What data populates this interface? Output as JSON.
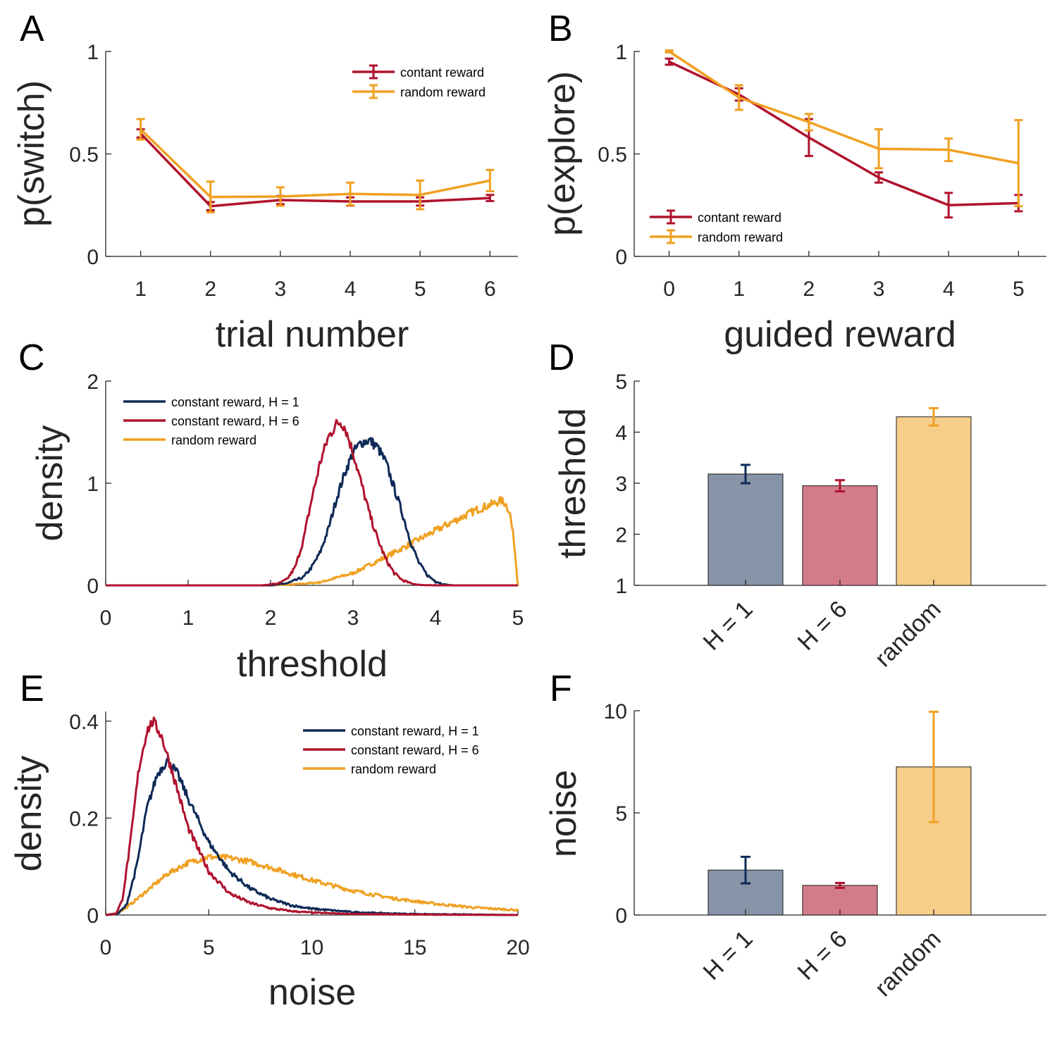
{
  "colors": {
    "navy": "#0f2a57",
    "crimson": "#b0122d",
    "orange": "#f0a021",
    "axis": "#262626"
  },
  "chart_data": [
    {
      "panel": "A",
      "type": "line",
      "xlabel": "trial number",
      "ylabel": "p(switch)",
      "xlim": [
        0.5,
        6.4
      ],
      "ylim": [
        0,
        1
      ],
      "x": [
        1,
        2,
        3,
        4,
        5,
        6
      ],
      "xticks": [
        "1",
        "2",
        "3",
        "4",
        "5",
        "6"
      ],
      "yticks": [
        "0",
        "0.5",
        "1"
      ],
      "legend_position": "top-right",
      "series": [
        {
          "name": "contant reward",
          "color": "#b0122d",
          "values": [
            0.6,
            0.245,
            0.275,
            0.268,
            0.268,
            0.285
          ],
          "err": [
            0.02,
            0.02,
            0.02,
            0.02,
            0.02,
            0.015
          ]
        },
        {
          "name": "random reward",
          "color": "#f0a021",
          "values": [
            0.62,
            0.29,
            0.292,
            0.305,
            0.3,
            0.37
          ],
          "err": [
            0.05,
            0.075,
            0.045,
            0.055,
            0.07,
            0.052
          ]
        }
      ]
    },
    {
      "panel": "B",
      "type": "line",
      "xlabel": "guided reward",
      "ylabel": "p(explore)",
      "xlim": [
        -0.5,
        5.4
      ],
      "ylim": [
        0,
        1
      ],
      "x": [
        0,
        1,
        2,
        3,
        4,
        5
      ],
      "xticks": [
        "0",
        "1",
        "2",
        "3",
        "4",
        "5"
      ],
      "yticks": [
        "0",
        "0.5",
        "1"
      ],
      "legend_position": "bottom-left",
      "series": [
        {
          "name": "contant reward",
          "color": "#b0122d",
          "values": [
            0.95,
            0.79,
            0.58,
            0.385,
            0.25,
            0.26
          ],
          "err": [
            0.015,
            0.03,
            0.09,
            0.025,
            0.06,
            0.04
          ]
        },
        {
          "name": "random reward",
          "color": "#f0a021",
          "values": [
            1.0,
            0.775,
            0.655,
            0.525,
            0.52,
            0.455
          ],
          "err": [
            0.005,
            0.06,
            0.04,
            0.095,
            0.055,
            0.21
          ]
        }
      ]
    },
    {
      "panel": "C",
      "type": "line",
      "xlabel": "threshold",
      "ylabel": "density",
      "xlim": [
        0,
        5
      ],
      "ylim": [
        0,
        2
      ],
      "xticks": [
        "0",
        "1",
        "2",
        "3",
        "4",
        "5"
      ],
      "yticks": [
        "0",
        "1",
        "2"
      ],
      "legend_position": "top-left",
      "series": [
        {
          "name": "constant reward, H = 1",
          "color": "#0f2a57",
          "x": [
            0,
            2.0,
            2.2,
            2.4,
            2.5,
            2.6,
            2.7,
            2.8,
            2.9,
            3.0,
            3.1,
            3.2,
            3.3,
            3.4,
            3.5,
            3.6,
            3.7,
            3.8,
            3.9,
            4.0,
            4.1,
            4.2,
            5.0
          ],
          "y": [
            0,
            0,
            0.02,
            0.08,
            0.18,
            0.32,
            0.55,
            0.85,
            1.1,
            1.3,
            1.4,
            1.42,
            1.35,
            1.2,
            0.95,
            0.7,
            0.42,
            0.22,
            0.1,
            0.04,
            0.01,
            0,
            0
          ]
        },
        {
          "name": "constant reward, H = 6",
          "color": "#b0122d",
          "x": [
            0,
            1.9,
            2.1,
            2.2,
            2.3,
            2.4,
            2.5,
            2.6,
            2.7,
            2.8,
            2.85,
            2.9,
            3.0,
            3.1,
            3.2,
            3.3,
            3.4,
            3.5,
            3.6,
            3.7,
            3.8,
            4.0,
            5.0
          ],
          "y": [
            0,
            0,
            0.02,
            0.06,
            0.18,
            0.45,
            0.85,
            1.2,
            1.45,
            1.58,
            1.6,
            1.55,
            1.3,
            1.0,
            0.7,
            0.45,
            0.25,
            0.12,
            0.05,
            0.02,
            0.005,
            0,
            0
          ]
        },
        {
          "name": "random reward",
          "color": "#f0a021",
          "x": [
            0,
            2.0,
            2.3,
            2.6,
            3.0,
            3.4,
            3.8,
            4.2,
            4.5,
            4.7,
            4.8,
            4.85,
            4.9,
            4.95,
            5.0
          ],
          "y": [
            0,
            0,
            0.01,
            0.03,
            0.12,
            0.28,
            0.45,
            0.62,
            0.74,
            0.8,
            0.83,
            0.8,
            0.72,
            0.45,
            0
          ]
        }
      ]
    },
    {
      "panel": "D",
      "type": "bar",
      "ylabel": "threshold",
      "ylim": [
        1,
        5
      ],
      "yticks": [
        "1",
        "2",
        "3",
        "4",
        "5"
      ],
      "categories": [
        "H = 1",
        "H = 6",
        "random"
      ],
      "values": [
        3.18,
        2.95,
        4.3
      ],
      "err": [
        0.18,
        0.11,
        0.17
      ],
      "bar_colors": [
        "#8794a7",
        "#d47b8a",
        "#f7cd8a"
      ],
      "err_colors": [
        "#0f2a57",
        "#b0122d",
        "#f0a021"
      ]
    },
    {
      "panel": "E",
      "type": "line",
      "xlabel": "noise",
      "ylabel": "density",
      "xlim": [
        0,
        20
      ],
      "ylim": [
        0,
        0.42
      ],
      "xticks": [
        "0",
        "5",
        "10",
        "15",
        "20"
      ],
      "yticks": [
        "0",
        "0.2",
        "0.4"
      ],
      "yticks_values": [
        0,
        0.2,
        0.4
      ],
      "xticks_values": [
        0,
        5,
        10,
        15,
        20
      ],
      "legend_position": "top-right",
      "series": [
        {
          "name": "constant reward, H = 1",
          "color": "#0f2a57",
          "x": [
            0,
            0.6,
            1.0,
            1.5,
            2.0,
            2.5,
            3.0,
            3.5,
            4.0,
            5.0,
            6.0,
            7.0,
            8.0,
            9.0,
            10.0,
            12.0,
            14.0,
            16.0,
            18.0,
            20.0
          ],
          "y": [
            0,
            0.003,
            0.02,
            0.1,
            0.22,
            0.29,
            0.32,
            0.29,
            0.24,
            0.15,
            0.09,
            0.055,
            0.033,
            0.02,
            0.013,
            0.006,
            0.003,
            0.0015,
            0.001,
            0
          ]
        },
        {
          "name": "constant reward, H = 6",
          "color": "#b0122d",
          "x": [
            0,
            0.5,
            0.8,
            1.2,
            1.6,
            2.0,
            2.3,
            2.7,
            3.2,
            4.0,
            5.0,
            6.0,
            7.0,
            8.0,
            9.0,
            10.0,
            12.0,
            15.0,
            20.0
          ],
          "y": [
            0,
            0.003,
            0.03,
            0.15,
            0.3,
            0.38,
            0.4,
            0.37,
            0.3,
            0.18,
            0.09,
            0.045,
            0.025,
            0.014,
            0.008,
            0.005,
            0.002,
            0.001,
            0
          ]
        },
        {
          "name": "random reward",
          "color": "#f0a021",
          "x": [
            0,
            0.5,
            1.0,
            2.0,
            3.0,
            4.0,
            5.0,
            6.0,
            7.0,
            8.0,
            9.0,
            10.0,
            12.0,
            14.0,
            16.0,
            18.0,
            20.0
          ],
          "y": [
            0,
            0.003,
            0.015,
            0.05,
            0.085,
            0.108,
            0.12,
            0.118,
            0.11,
            0.098,
            0.085,
            0.072,
            0.05,
            0.034,
            0.023,
            0.015,
            0.01
          ]
        }
      ]
    },
    {
      "panel": "F",
      "type": "bar",
      "ylabel": "noise",
      "ylim": [
        0,
        10
      ],
      "yticks": [
        "0",
        "5",
        "10"
      ],
      "yticks_values": [
        0,
        5,
        10
      ],
      "categories": [
        "H = 1",
        "H = 6",
        "random"
      ],
      "values": [
        2.2,
        1.45,
        7.25
      ],
      "err": [
        0.65,
        0.12,
        2.7
      ],
      "bar_colors": [
        "#8794a7",
        "#d47b8a",
        "#f7cd8a"
      ],
      "err_colors": [
        "#0f2a57",
        "#b0122d",
        "#f0a021"
      ]
    }
  ]
}
